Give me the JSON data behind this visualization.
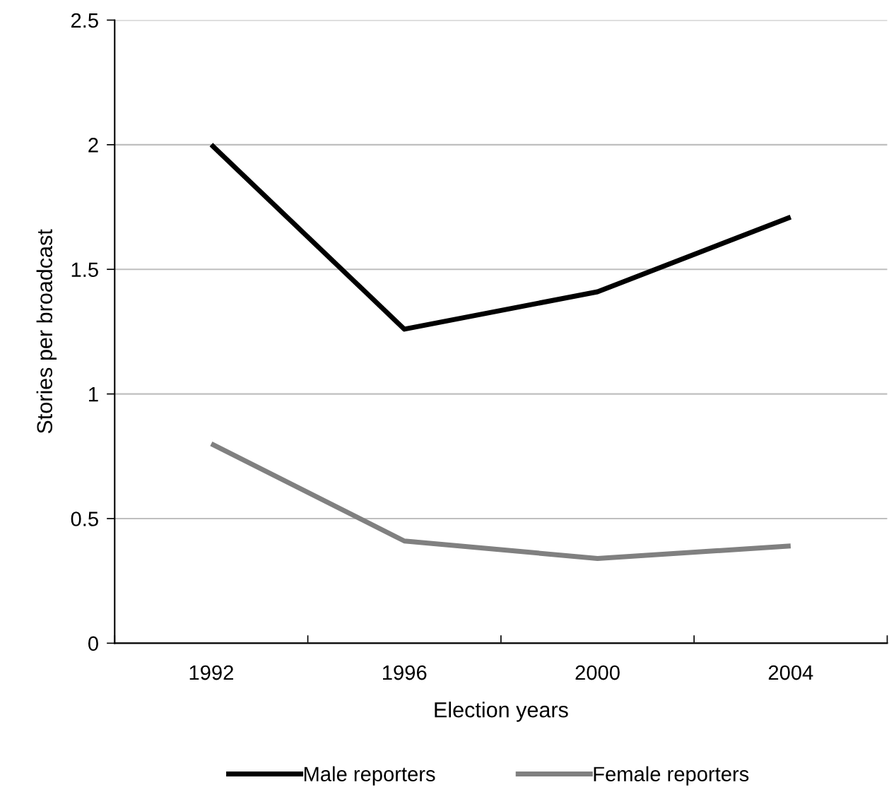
{
  "chart_data": {
    "type": "line",
    "xlabel": "Election years",
    "ylabel": "Stories per broadcast",
    "categories": [
      "1992",
      "1996",
      "2000",
      "2004"
    ],
    "series": [
      {
        "name": "Male reporters",
        "color": "#000000",
        "values": [
          2.0,
          1.26,
          1.41,
          1.71
        ]
      },
      {
        "name": "Female reporters",
        "color": "#808080",
        "values": [
          0.8,
          0.41,
          0.34,
          0.39
        ]
      }
    ],
    "ylim": [
      0,
      2.5
    ],
    "yticks": [
      0,
      0.5,
      1,
      1.5,
      2,
      2.5
    ],
    "grid": "y",
    "legend": "bottom",
    "marker": "none",
    "line_style": "solid"
  }
}
